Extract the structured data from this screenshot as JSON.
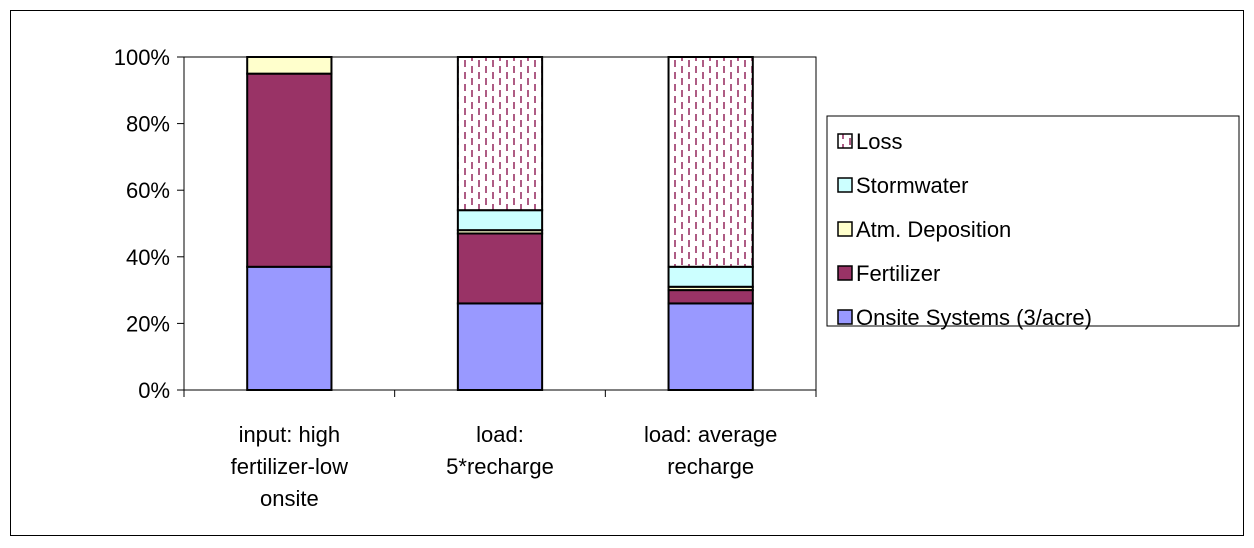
{
  "chart_data": {
    "type": "bar",
    "stacked": true,
    "percent_stacked": true,
    "categories": [
      [
        "input: high",
        "fertilizer-low",
        "onsite"
      ],
      [
        "load:",
        "5*recharge"
      ],
      [
        "load: average",
        "recharge"
      ]
    ],
    "series": [
      {
        "name": "Onsite Systems (3/acre)",
        "color": "#9999FF",
        "pattern": "solid",
        "values": [
          37,
          26,
          26
        ]
      },
      {
        "name": "Fertilizer",
        "color": "#993366",
        "pattern": "solid",
        "values": [
          58,
          21,
          4
        ]
      },
      {
        "name": "Atm. Deposition",
        "color": "#FFFFCC",
        "pattern": "solid",
        "values": [
          5,
          1,
          1
        ]
      },
      {
        "name": "Stormwater",
        "color": "#CCFFFF",
        "pattern": "solid",
        "values": [
          0,
          6,
          6
        ]
      },
      {
        "name": "Loss",
        "color": "#993366",
        "pattern": "dashed-vertical",
        "values": [
          0,
          46,
          63
        ]
      }
    ],
    "legend_order": [
      4,
      3,
      2,
      1,
      0
    ],
    "legend_position": "right",
    "title": "",
    "xlabel": "",
    "ylabel": "",
    "ylim": [
      0,
      100
    ],
    "y_ticks": [
      0,
      20,
      40,
      60,
      80,
      100
    ],
    "y_tick_suffix": "%",
    "grid": false
  }
}
